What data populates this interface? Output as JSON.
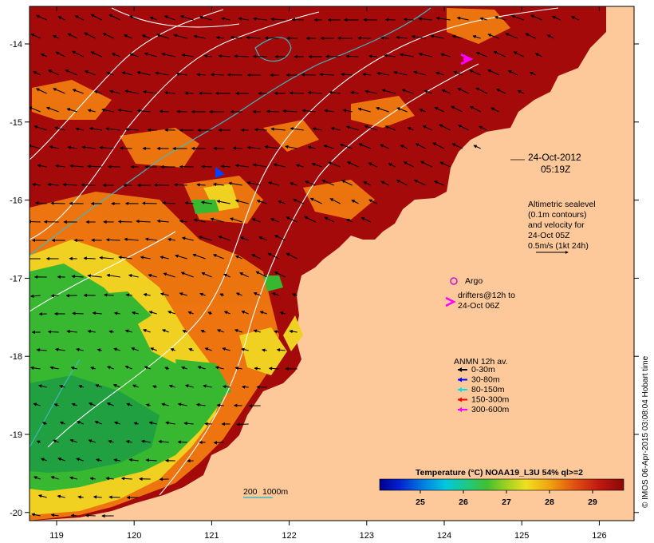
{
  "map": {
    "timestamp_line1": "24-Oct-2012",
    "timestamp_line2": "05:19Z",
    "x_ticks": [
      "119",
      "120",
      "121",
      "122",
      "123",
      "124",
      "125",
      "126"
    ],
    "y_ticks": [
      "-14",
      "-15",
      "-16",
      "-17",
      "-18",
      "-19",
      "-20"
    ],
    "altimetry": {
      "line1": "Altimetric sealevel",
      "line2": "(0.1m contours)",
      "line3": "and velocity for",
      "line4": "24-Oct 05Z",
      "line5": "0.5m/s (1kt 24h)"
    },
    "argo_label": "Argo",
    "drifters": {
      "line1": "drifters@12h to",
      "line2": "24-Oct 06Z"
    },
    "anmn": {
      "title": "ANMN 12h av.",
      "items": [
        {
          "label": "0-30m",
          "color": "#000000"
        },
        {
          "label": "30-80m",
          "color": "#0000ff"
        },
        {
          "label": "80-150m",
          "color": "#00e0e0"
        },
        {
          "label": "150-300m",
          "color": "#ff0000"
        },
        {
          "label": "300-600m",
          "color": "#ff00ff"
        }
      ]
    },
    "depth_contours": {
      "label1": "200",
      "label2": "1000m"
    },
    "colorbar": {
      "title": "Temperature (°C) NOAA19_L3U 54% ql>=2",
      "ticks": [
        "25",
        "26",
        "27",
        "28",
        "29"
      ]
    },
    "credit": "© IMOS 06-Apr-2015 03:08:04 Hobart time",
    "colors": {
      "land": "#fdc99a",
      "sst_warm": "#a50a0a",
      "sst_orange": "#f07a10",
      "sst_yellow": "#f0d820",
      "sst_green": "#38b830",
      "altimetry_contour": "#ffffff",
      "depth_200": "#40b8c0"
    }
  }
}
